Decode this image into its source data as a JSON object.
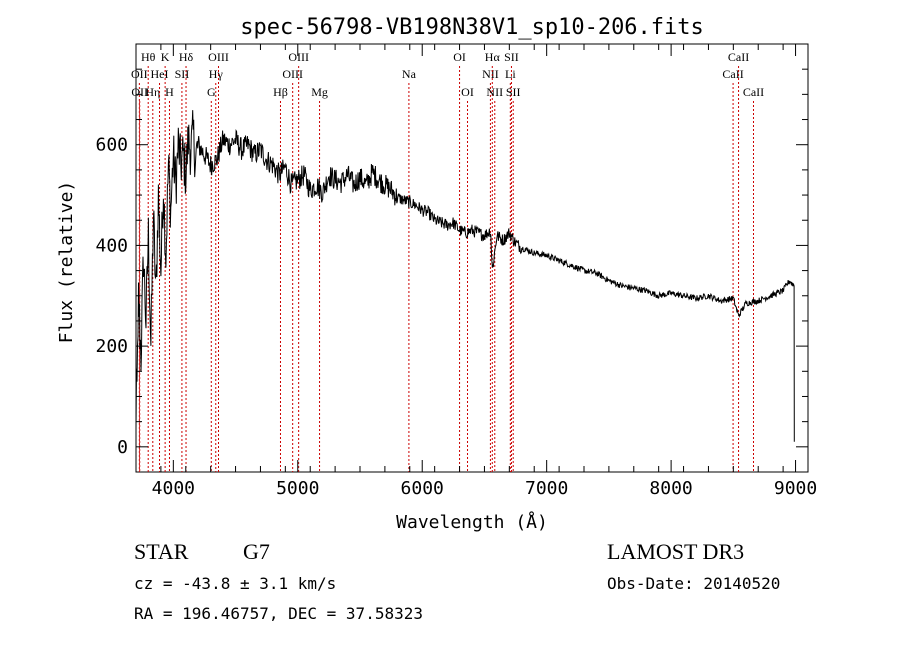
{
  "chart_data": {
    "type": "line",
    "title": "spec-56798-VB198N38V1_sp10-206.fits",
    "xlabel": "Wavelength (Å)",
    "ylabel": "Flux (relative)",
    "xlim": [
      3700,
      9100
    ],
    "ylim": [
      -50,
      800
    ],
    "x_ticks": [
      4000,
      5000,
      6000,
      7000,
      8000,
      9000
    ],
    "x_tick_labels": [
      "4000",
      "5000",
      "6000",
      "7000",
      "8000",
      "9000"
    ],
    "y_ticks": [
      0,
      200,
      400,
      600
    ],
    "y_tick_labels": [
      "0",
      "200",
      "400",
      "600"
    ],
    "line_color": "#000000",
    "marker_color": "#cc0000",
    "series": [
      {
        "name": "flux",
        "x": [
          3700,
          3720,
          3740,
          3760,
          3780,
          3800,
          3820,
          3840,
          3860,
          3880,
          3900,
          3920,
          3940,
          3960,
          3980,
          4000,
          4020,
          4040,
          4060,
          4080,
          4100,
          4120,
          4140,
          4160,
          4180,
          4200,
          4250,
          4300,
          4350,
          4400,
          4450,
          4500,
          4550,
          4600,
          4650,
          4700,
          4750,
          4800,
          4850,
          4900,
          4950,
          5000,
          5050,
          5100,
          5150,
          5200,
          5250,
          5300,
          5350,
          5400,
          5450,
          5500,
          5550,
          5600,
          5650,
          5700,
          5750,
          5800,
          5850,
          5900,
          5950,
          6000,
          6050,
          6100,
          6150,
          6200,
          6250,
          6300,
          6350,
          6400,
          6450,
          6500,
          6550,
          6563,
          6600,
          6650,
          6700,
          6750,
          6800,
          6900,
          7000,
          7100,
          7200,
          7300,
          7400,
          7500,
          7600,
          7700,
          7800,
          7900,
          8000,
          8100,
          8200,
          8300,
          8400,
          8500,
          8542,
          8600,
          8700,
          8800,
          8900,
          8950,
          8990
        ],
        "y": [
          120,
          300,
          180,
          380,
          250,
          420,
          200,
          460,
          300,
          500,
          350,
          520,
          380,
          560,
          470,
          580,
          520,
          600,
          560,
          580,
          540,
          610,
          590,
          620,
          570,
          600,
          580,
          560,
          570,
          610,
          600,
          610,
          590,
          600,
          580,
          590,
          570,
          560,
          540,
          555,
          520,
          530,
          540,
          510,
          520,
          505,
          540,
          530,
          525,
          540,
          520,
          535,
          520,
          545,
          530,
          520,
          510,
          495,
          490,
          485,
          480,
          470,
          465,
          450,
          445,
          440,
          445,
          430,
          425,
          430,
          425,
          420,
          430,
          350,
          420,
          410,
          425,
          405,
          395,
          385,
          380,
          370,
          360,
          350,
          345,
          330,
          320,
          315,
          310,
          300,
          305,
          300,
          295,
          300,
          290,
          295,
          260,
          285,
          290,
          300,
          310,
          330,
          320
        ]
      }
    ],
    "line_markers": [
      {
        "label": "Hθ",
        "wavelength": 3798,
        "row": 0
      },
      {
        "label": "OII",
        "wavelength": 3727,
        "row": 1
      },
      {
        "label": "OII",
        "wavelength": 3730,
        "row": 2
      },
      {
        "label": "Hη",
        "wavelength": 3835,
        "row": 2
      },
      {
        "label": "HeI",
        "wavelength": 3889,
        "row": 1
      },
      {
        "label": "K",
        "wavelength": 3934,
        "row": 0
      },
      {
        "label": "H",
        "wavelength": 3969,
        "row": 2
      },
      {
        "label": "SII",
        "wavelength": 4069,
        "row": 1
      },
      {
        "label": "Hδ",
        "wavelength": 4102,
        "row": 0
      },
      {
        "label": "Hγ",
        "wavelength": 4341,
        "row": 1
      },
      {
        "label": "G",
        "wavelength": 4305,
        "row": 2
      },
      {
        "label": "OIII",
        "wavelength": 4363,
        "row": 0
      },
      {
        "label": "Hβ",
        "wavelength": 4861,
        "row": 2
      },
      {
        "label": "OIII",
        "wavelength": 4959,
        "row": 1
      },
      {
        "label": "OIII",
        "wavelength": 5007,
        "row": 0
      },
      {
        "label": "Mg",
        "wavelength": 5175,
        "row": 2
      },
      {
        "label": "Na",
        "wavelength": 5893,
        "row": 1
      },
      {
        "label": "OI",
        "wavelength": 6300,
        "row": 0
      },
      {
        "label": "OI",
        "wavelength": 6364,
        "row": 2
      },
      {
        "label": "NII",
        "wavelength": 6548,
        "row": 1
      },
      {
        "label": "Hα",
        "wavelength": 6563,
        "row": 0
      },
      {
        "label": "NII",
        "wavelength": 6583,
        "row": 2
      },
      {
        "label": "Li",
        "wavelength": 6708,
        "row": 1
      },
      {
        "label": "SII",
        "wavelength": 6717,
        "row": 0
      },
      {
        "label": "SII",
        "wavelength": 6731,
        "row": 2
      },
      {
        "label": "CaII",
        "wavelength": 8498,
        "row": 1
      },
      {
        "label": "CaII",
        "wavelength": 8542,
        "row": 0
      },
      {
        "label": "CaII",
        "wavelength": 8662,
        "row": 2
      }
    ]
  },
  "info": {
    "object_class": "STAR",
    "subclass": "G7",
    "survey": "LAMOST DR3",
    "cz_text": "cz = -43.8 ± 3.1 km/s",
    "obs_date_text": "Obs-Date: 20140520",
    "radec_text": "RA = 196.46757, DEC =  37.58323"
  }
}
